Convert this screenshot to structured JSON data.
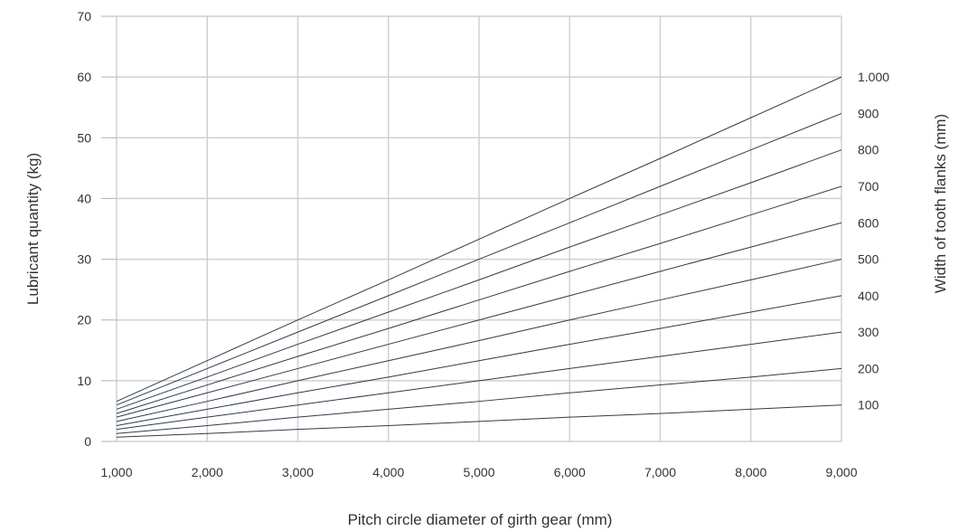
{
  "chart_data": {
    "type": "line",
    "title": "",
    "xlabel": "Pitch circle diameter of girth gear (mm)",
    "ylabel": "Lubricant quantity (kg)",
    "y2label": "Width of tooth flanks (mm)",
    "xlim": [
      1000,
      9000
    ],
    "ylim": [
      0,
      70
    ],
    "x_ticks": [
      1000,
      2000,
      3000,
      4000,
      5000,
      6000,
      7000,
      8000,
      9000
    ],
    "x_tick_labels": [
      "1,000",
      "2,000",
      "3,000",
      "4,000",
      "5,000",
      "6,000",
      "7,000",
      "8,000",
      "9,000"
    ],
    "y_ticks": [
      0,
      10,
      20,
      30,
      40,
      50,
      60,
      70
    ],
    "y_tick_labels": [
      "0",
      "10",
      "20",
      "30",
      "40",
      "50",
      "60",
      "70"
    ],
    "grid": true,
    "line_color": "#2f3b48",
    "grid_color": "#d0d0d0",
    "x": [
      1000,
      2000,
      3000,
      4000,
      5000,
      6000,
      7000,
      8000,
      9000
    ],
    "series": [
      {
        "right_label": "100",
        "values": [
          0.7,
          1.3,
          2.0,
          2.6,
          3.3,
          4.0,
          4.6,
          5.3,
          6.0
        ]
      },
      {
        "right_label": "200",
        "values": [
          1.3,
          2.6,
          4.0,
          5.3,
          6.6,
          8.0,
          9.3,
          10.6,
          12.0
        ]
      },
      {
        "right_label": "300",
        "values": [
          2.0,
          4.0,
          6.0,
          8.0,
          10.0,
          12.0,
          14.0,
          16.0,
          18.0
        ]
      },
      {
        "right_label": "400",
        "values": [
          2.6,
          5.3,
          8.0,
          10.6,
          13.3,
          16.0,
          18.6,
          21.3,
          24.0
        ]
      },
      {
        "right_label": "500",
        "values": [
          3.3,
          6.6,
          10.0,
          13.3,
          16.6,
          20.0,
          23.3,
          26.6,
          30.0
        ]
      },
      {
        "right_label": "600",
        "values": [
          4.0,
          8.0,
          12.0,
          16.0,
          20.0,
          24.0,
          28.0,
          32.0,
          36.0
        ]
      },
      {
        "right_label": "700",
        "values": [
          4.6,
          9.3,
          14.0,
          18.6,
          23.3,
          28.0,
          32.6,
          37.3,
          42.0
        ]
      },
      {
        "right_label": "800",
        "values": [
          5.3,
          10.6,
          16.0,
          21.3,
          26.6,
          32.0,
          37.3,
          42.6,
          48.0
        ]
      },
      {
        "right_label": "900",
        "values": [
          6.0,
          12.0,
          18.0,
          24.0,
          30.0,
          36.0,
          42.0,
          48.0,
          54.0
        ]
      },
      {
        "right_label": "1.000",
        "values": [
          6.6,
          13.3,
          20.0,
          26.6,
          33.3,
          40.0,
          46.6,
          53.3,
          60.0
        ]
      }
    ]
  }
}
